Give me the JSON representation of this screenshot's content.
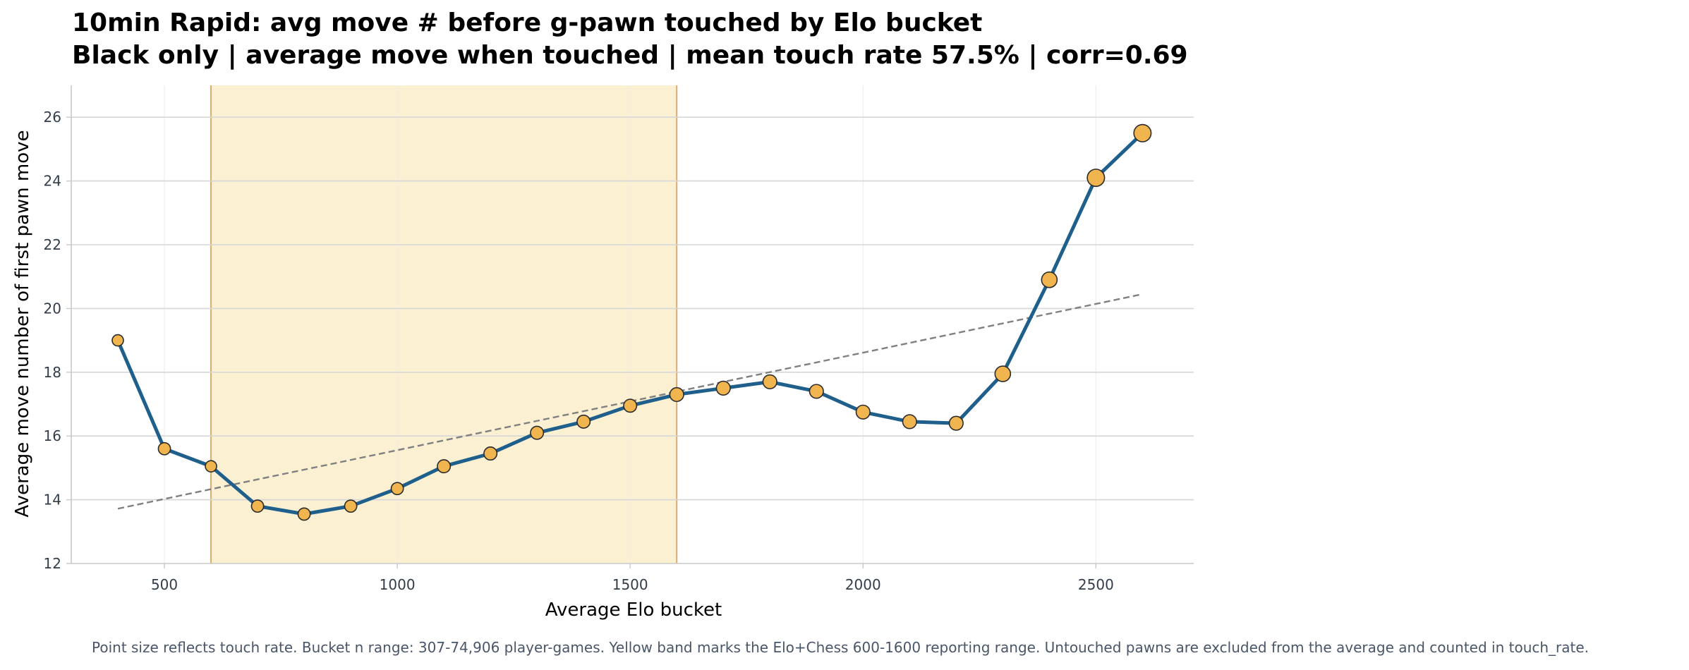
{
  "title": {
    "line1": "10min Rapid: avg move # before g-pawn touched by Elo bucket",
    "line2": "Black only | average move when touched | mean touch rate 57.5% | corr=0.69"
  },
  "footnote": "Point size reflects touch rate. Bucket n range: 307-74,906 player-games. Yellow band marks the Elo+Chess 600-1600 reporting range. Untouched pawns are excluded from the average and counted in touch_rate.",
  "chart_data": {
    "type": "line",
    "xlabel": "Average Elo bucket",
    "ylabel": "Average move number of first pawn move",
    "xlim": [
      300,
      2710
    ],
    "ylim": [
      12,
      27
    ],
    "xticks": [
      500,
      1000,
      1500,
      2000,
      2500
    ],
    "yticks": [
      12,
      14,
      16,
      18,
      20,
      22,
      24,
      26
    ],
    "grid": true,
    "band": {
      "x_start": 600,
      "x_end": 1600
    },
    "series": [
      {
        "x": [
          400,
          500,
          600,
          700,
          800,
          900,
          1000,
          1100,
          1200,
          1300,
          1400,
          1500,
          1600,
          1700,
          1800,
          1900,
          2000,
          2100,
          2200,
          2300,
          2400,
          2500,
          2600
        ],
        "y": [
          19.0,
          15.6,
          15.05,
          13.8,
          13.55,
          13.8,
          14.35,
          15.05,
          15.45,
          16.1,
          16.45,
          16.95,
          17.3,
          17.5,
          17.7,
          17.4,
          16.75,
          16.45,
          16.4,
          17.95,
          20.9,
          24.1,
          25.5
        ],
        "touch_rate_size": [
          0.5,
          0.55,
          0.5,
          0.55,
          0.55,
          0.55,
          0.55,
          0.6,
          0.6,
          0.6,
          0.6,
          0.6,
          0.65,
          0.65,
          0.65,
          0.65,
          0.65,
          0.65,
          0.65,
          0.75,
          0.75,
          0.85,
          0.85
        ]
      }
    ],
    "trendline": {
      "x": [
        400,
        2600
      ],
      "y": [
        13.72,
        20.45
      ]
    },
    "colors": {
      "line": "#1f5f8b",
      "marker_fill": "#f0b54f",
      "marker_edge": "#2b2b2b",
      "band_fill": "#fbf0d2",
      "band_edge": "#d9ad6e",
      "trend": "#808080",
      "grid": "#d6d6d6",
      "vgrid": "#eeeeee"
    }
  }
}
